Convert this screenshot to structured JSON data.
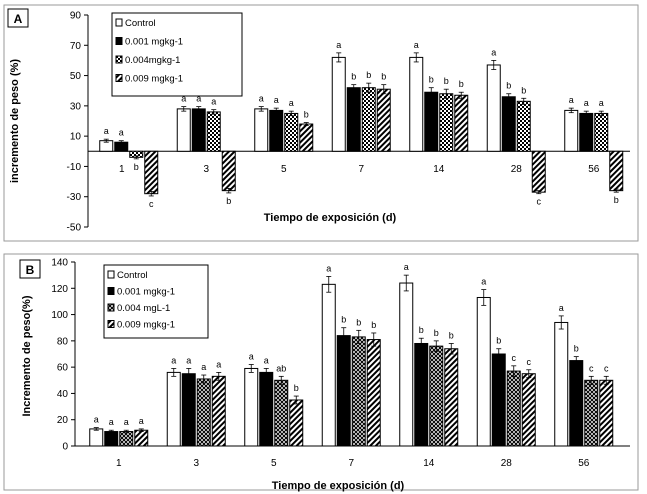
{
  "chart_data": [
    {
      "type": "bar",
      "panel": "A",
      "categories": [
        "1",
        "3",
        "5",
        "7",
        "14",
        "28",
        "56"
      ],
      "series": [
        {
          "name": "Control",
          "pattern": "white",
          "values": [
            7,
            28,
            28,
            62,
            62,
            57,
            27
          ],
          "errors": [
            1,
            1.5,
            1.5,
            3,
            3,
            3,
            1.5
          ],
          "labels": [
            "a",
            "a",
            "a",
            "a",
            "a",
            "a",
            "a"
          ]
        },
        {
          "name": "0.001 mgkg-1",
          "pattern": "black",
          "values": [
            6,
            28,
            27,
            42,
            39,
            36,
            25
          ],
          "errors": [
            1,
            1.5,
            1.5,
            2,
            3,
            2,
            1.5
          ],
          "labels": [
            "a",
            "a",
            "a",
            "b",
            "b",
            "b",
            "a"
          ]
        },
        {
          "name": "0.004mgkg-1",
          "pattern": "checker",
          "values": [
            -4,
            26,
            25,
            42,
            38,
            33,
            25
          ],
          "errors": [
            1,
            1.5,
            1.5,
            3,
            3,
            2,
            1.5
          ],
          "labels": [
            "b",
            "a",
            "a",
            "b",
            "b",
            "b",
            "a"
          ]
        },
        {
          "name": "0.009 mgkg-1",
          "pattern": "diagonal",
          "values": [
            -28,
            -26,
            18,
            41,
            37,
            -27,
            -26
          ],
          "errors": [
            1.5,
            1.5,
            1,
            3,
            2,
            1,
            1
          ],
          "labels": [
            "c",
            "b",
            "b",
            "b",
            "b",
            "c",
            "b"
          ]
        }
      ],
      "xlabel": "Tiempo de exposición (d)",
      "ylabel": "incremento de peso (%)",
      "yticks": [
        90,
        70,
        50,
        30,
        10,
        -10,
        -30,
        -50
      ],
      "ylim": [
        -50,
        90
      ]
    },
    {
      "type": "bar",
      "panel": "B",
      "categories": [
        "1",
        "3",
        "5",
        "7",
        "14",
        "28",
        "56"
      ],
      "series": [
        {
          "name": "Control",
          "pattern": "white",
          "values": [
            13,
            56,
            59,
            123,
            124,
            113,
            94
          ],
          "errors": [
            1,
            3,
            3,
            6,
            6,
            6,
            5
          ],
          "labels": [
            "a",
            "a",
            "a",
            "a",
            "a",
            "a",
            "a"
          ]
        },
        {
          "name": "0.001 mgkg-1",
          "pattern": "black",
          "values": [
            11,
            55,
            56,
            84,
            78,
            70,
            65
          ],
          "errors": [
            1,
            4,
            3,
            6,
            4,
            4,
            3
          ],
          "labels": [
            "a",
            "a",
            "a",
            "b",
            "b",
            "b",
            "b"
          ]
        },
        {
          "name": "0.004 mgL-1",
          "pattern": "cross",
          "values": [
            11,
            51,
            50,
            83,
            76,
            57,
            50
          ],
          "errors": [
            1,
            3,
            3,
            5,
            4,
            4,
            3
          ],
          "labels": [
            "a",
            "a",
            "ab",
            "b",
            "b",
            "c",
            "c"
          ]
        },
        {
          "name": "0.009 mgkg-1",
          "pattern": "diagonal",
          "values": [
            12,
            53,
            35,
            81,
            74,
            55,
            50
          ],
          "errors": [
            1,
            3,
            3,
            5,
            4,
            3,
            3
          ],
          "labels": [
            "a",
            "a",
            "b",
            "b",
            "b",
            "c",
            "c"
          ]
        }
      ],
      "xlabel": "Tiempo de exposición (d)",
      "ylabel": "Incremento de peso(%)",
      "yticks": [
        0,
        20,
        40,
        60,
        80,
        100,
        120,
        140
      ],
      "ylim": [
        0,
        140
      ]
    }
  ]
}
